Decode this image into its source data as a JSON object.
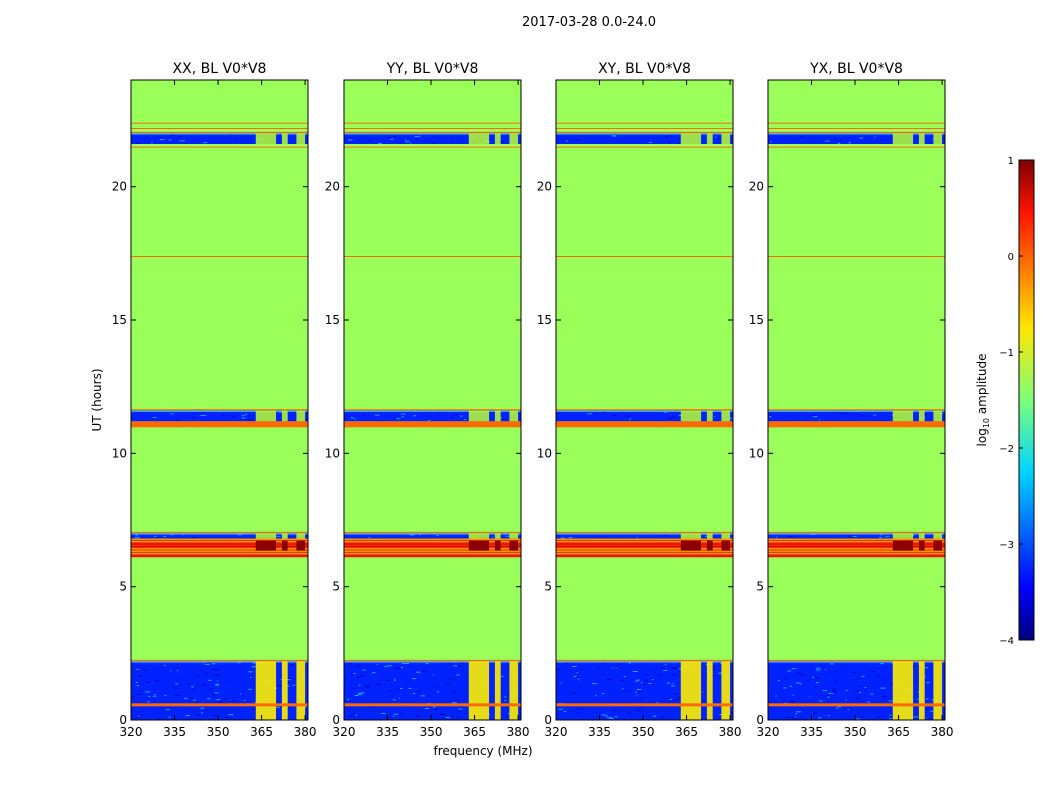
{
  "figure_title": "2017-03-28 0.0-24.0",
  "colors": {
    "background": "#9bff5a",
    "flag_line": "#ff6a00",
    "noise_low": "#0022ff",
    "noise_mid": "#19c8ff",
    "rfi_high": "#fff000",
    "burst": "#c80000"
  },
  "chart_data": {
    "type": "heatmap",
    "panels": [
      {
        "title": "XX, BL V0*V8"
      },
      {
        "title": "YY, BL V0*V8"
      },
      {
        "title": "XY, BL V0*V8"
      },
      {
        "title": "YX, BL V0*V8"
      }
    ],
    "xlabel": "frequency (MHz)",
    "ylabel": "UT (hours)",
    "xlim": [
      320,
      381
    ],
    "ylim": [
      0,
      24
    ],
    "xticks": [
      320,
      335,
      350,
      365,
      380
    ],
    "yticks": [
      0,
      5,
      10,
      15,
      20
    ],
    "colorbar": {
      "label_prefix": "log",
      "label_sub": "10",
      "label_suffix": " amplitude",
      "range": [
        -4,
        1
      ],
      "ticks": [
        1,
        0,
        -1,
        -2,
        -3,
        -4
      ],
      "tick_labels": [
        "1",
        "0",
        "−1",
        "−2",
        "−3",
        "−4"
      ],
      "colormap": "jet"
    },
    "flag_lines_ut": [
      17.4
    ],
    "noise_bands_ut": [
      [
        0.0,
        2.2
      ],
      [
        6.8,
        7.0
      ],
      [
        11.2,
        11.6
      ],
      [
        21.6,
        22.0
      ]
    ],
    "burst_band_ut": [
      6.1,
      6.8
    ],
    "rfi_channels_mhz": [
      [
        363,
        370
      ],
      [
        372,
        374
      ],
      [
        377,
        380
      ]
    ]
  }
}
